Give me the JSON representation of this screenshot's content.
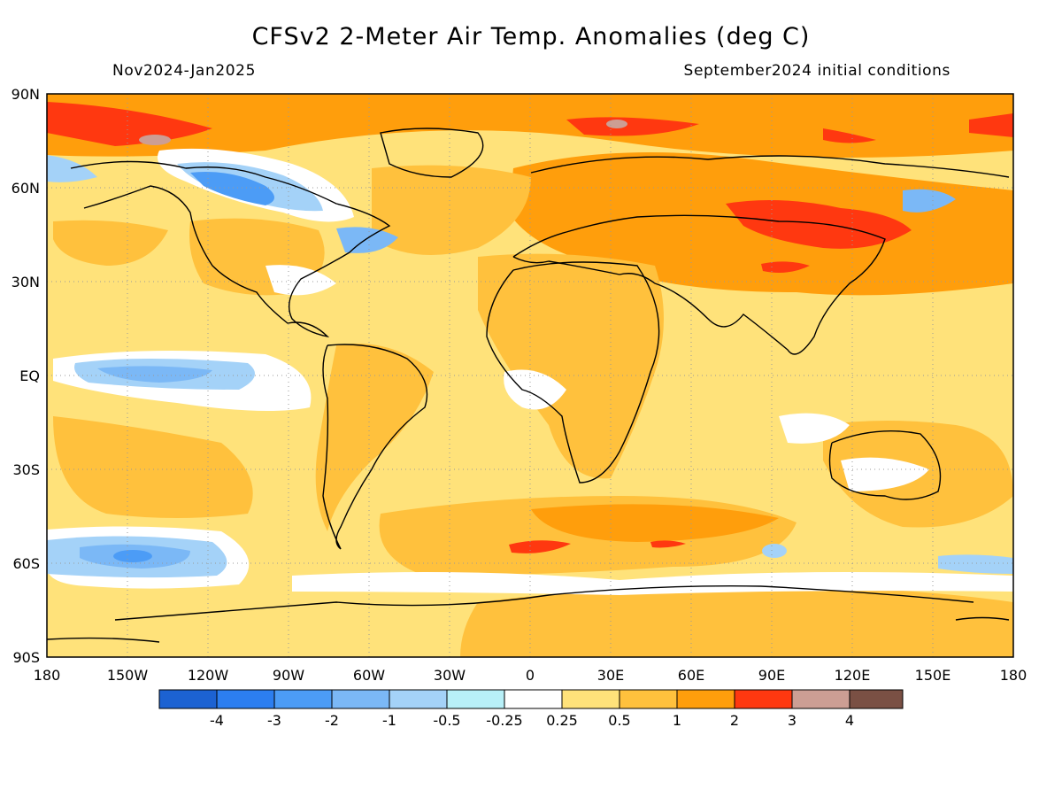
{
  "title": "CFSv2 2-Meter Air Temp. Anomalies (deg C)",
  "subtitle_left": "Nov2024-Jan2025",
  "subtitle_right": "September2024 initial conditions",
  "map": {
    "projection": "equirectangular",
    "lon_range": [
      -180,
      180
    ],
    "lat_range": [
      -90,
      90
    ],
    "gridlines": "dotted",
    "lat_labels": [
      "90N",
      "60N",
      "30N",
      "EQ",
      "30S",
      "60S",
      "90S"
    ],
    "lon_labels": [
      "180",
      "150W",
      "120W",
      "90W",
      "60W",
      "30W",
      "0",
      "30E",
      "60E",
      "90E",
      "120E",
      "150E",
      "180"
    ]
  },
  "colorbar": {
    "colors": [
      "#1c62d2",
      "#2c7ef0",
      "#4c9cf6",
      "#7bb8f6",
      "#a4d2f8",
      "#b8f0f8",
      "#ffffff",
      "#ffe27a",
      "#ffc13d",
      "#ff9e0c",
      "#ff3810",
      "#cc9e94",
      "#7a5044"
    ],
    "labels": [
      "-4",
      "-3",
      "-2",
      "-1",
      "-0.5",
      "-0.25",
      "0.25",
      "0.5",
      "1",
      "2",
      "3",
      "4"
    ]
  }
}
